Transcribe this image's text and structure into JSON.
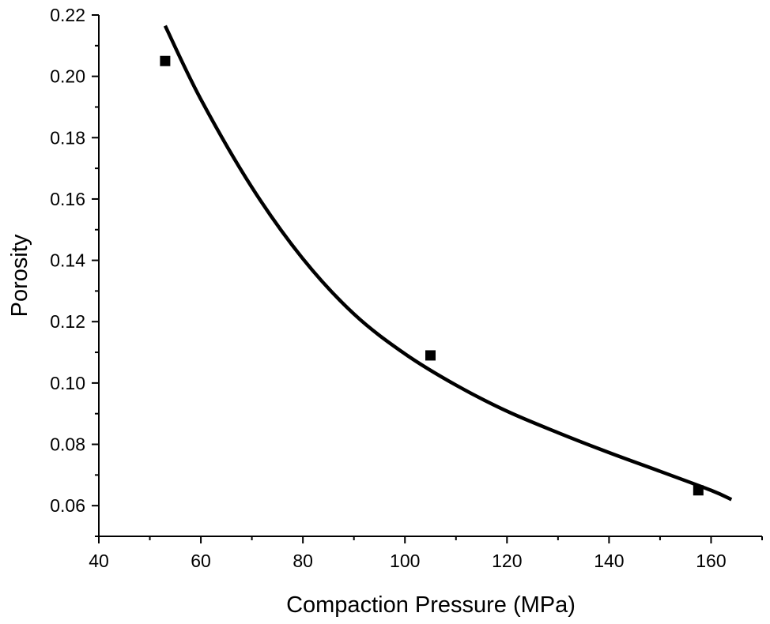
{
  "chart_data": {
    "type": "scatter",
    "title": "",
    "xlabel": "Compaction Pressure (MPa)",
    "ylabel": "Porosity",
    "xlim": [
      40,
      170
    ],
    "ylim": [
      0.05,
      0.22
    ],
    "x_ticks": [
      40,
      60,
      80,
      100,
      120,
      140,
      160
    ],
    "x_tick_labels": [
      "40",
      "60",
      "80",
      "100",
      "120",
      "140",
      "160"
    ],
    "y_ticks": [
      0.06,
      0.08,
      0.1,
      0.12,
      0.14,
      0.16,
      0.18,
      0.2,
      0.22
    ],
    "y_tick_labels": [
      "0.06",
      "0.08",
      "0.10",
      "0.12",
      "0.14",
      "0.16",
      "0.18",
      "0.20",
      "0.22"
    ],
    "grid": false,
    "legend": "none",
    "series": [
      {
        "kind": "points",
        "marker": "square",
        "color": "#000000",
        "x": [
          53,
          105,
          157.5
        ],
        "y": [
          0.205,
          0.109,
          0.065
        ]
      },
      {
        "kind": "fit-curve",
        "color": "#000000",
        "x": [
          53,
          60,
          70,
          80,
          90,
          100,
          110,
          120,
          130,
          140,
          150,
          160,
          164
        ],
        "y": [
          0.2165,
          0.1925,
          0.1638,
          0.1405,
          0.1225,
          0.1095,
          0.0993,
          0.0908,
          0.0838,
          0.0773,
          0.0712,
          0.065,
          0.062
        ]
      }
    ]
  }
}
